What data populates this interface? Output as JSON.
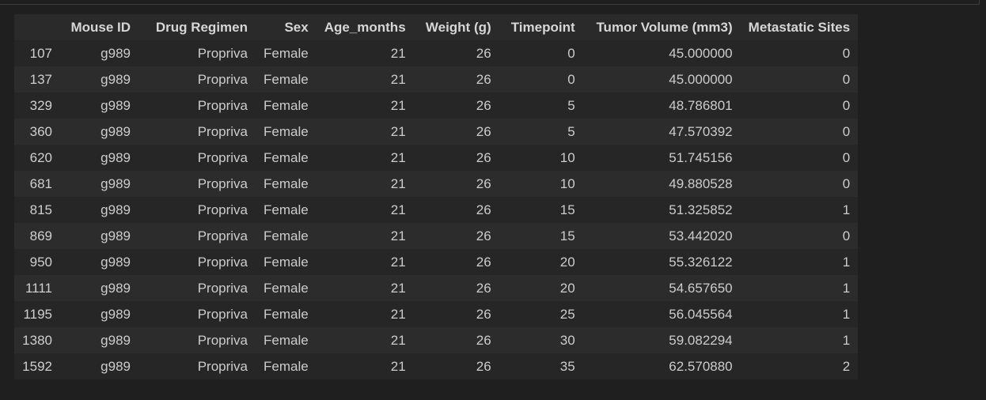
{
  "table": {
    "columns": [
      "",
      "Mouse ID",
      "Drug Regimen",
      "Sex",
      "Age_months",
      "Weight (g)",
      "Timepoint",
      "Tumor Volume (mm3)",
      "Metastatic Sites"
    ],
    "rows": [
      [
        "107",
        "g989",
        "Propriva",
        "Female",
        "21",
        "26",
        "0",
        "45.000000",
        "0"
      ],
      [
        "137",
        "g989",
        "Propriva",
        "Female",
        "21",
        "26",
        "0",
        "45.000000",
        "0"
      ],
      [
        "329",
        "g989",
        "Propriva",
        "Female",
        "21",
        "26",
        "5",
        "48.786801",
        "0"
      ],
      [
        "360",
        "g989",
        "Propriva",
        "Female",
        "21",
        "26",
        "5",
        "47.570392",
        "0"
      ],
      [
        "620",
        "g989",
        "Propriva",
        "Female",
        "21",
        "26",
        "10",
        "51.745156",
        "0"
      ],
      [
        "681",
        "g989",
        "Propriva",
        "Female",
        "21",
        "26",
        "10",
        "49.880528",
        "0"
      ],
      [
        "815",
        "g989",
        "Propriva",
        "Female",
        "21",
        "26",
        "15",
        "51.325852",
        "1"
      ],
      [
        "869",
        "g989",
        "Propriva",
        "Female",
        "21",
        "26",
        "15",
        "53.442020",
        "0"
      ],
      [
        "950",
        "g989",
        "Propriva",
        "Female",
        "21",
        "26",
        "20",
        "55.326122",
        "1"
      ],
      [
        "1111",
        "g989",
        "Propriva",
        "Female",
        "21",
        "26",
        "20",
        "54.657650",
        "1"
      ],
      [
        "1195",
        "g989",
        "Propriva",
        "Female",
        "21",
        "26",
        "25",
        "56.045564",
        "1"
      ],
      [
        "1380",
        "g989",
        "Propriva",
        "Female",
        "21",
        "26",
        "30",
        "59.082294",
        "1"
      ],
      [
        "1592",
        "g989",
        "Propriva",
        "Female",
        "21",
        "26",
        "35",
        "62.570880",
        "2"
      ]
    ]
  }
}
